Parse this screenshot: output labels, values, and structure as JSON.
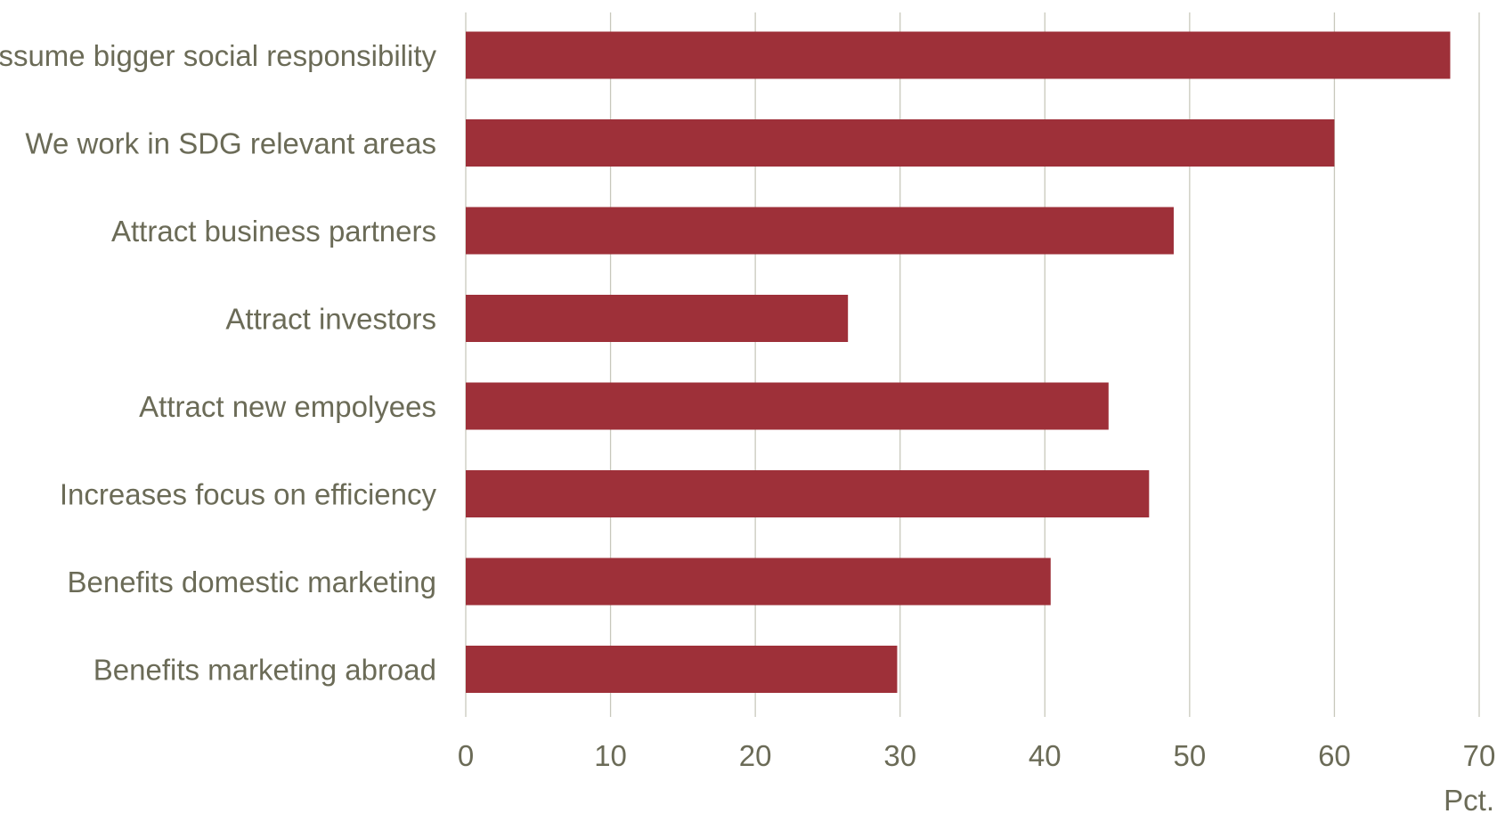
{
  "chart_data": {
    "type": "bar",
    "orientation": "horizontal",
    "categories": [
      "Assume bigger social responsibility",
      "We work in SDG relevant areas",
      "Attract business partners",
      "Attract investors",
      "Attract new empolyees",
      "Increases focus on efficiency",
      "Benefits domestic marketing",
      "Benefits marketing abroad"
    ],
    "values": [
      68,
      60,
      48.9,
      26.4,
      44.4,
      47.2,
      40.4,
      29.8
    ],
    "xlim": [
      0,
      70
    ],
    "xticks": [
      "0",
      "10",
      "20",
      "30",
      "40",
      "50",
      "60",
      "70"
    ],
    "xlabel": "Pct.",
    "grid": "vertical",
    "legend": "none",
    "bar_color": "#9e3039",
    "grid_color": "#c8c8bc",
    "text_color": "#6b6b57"
  }
}
